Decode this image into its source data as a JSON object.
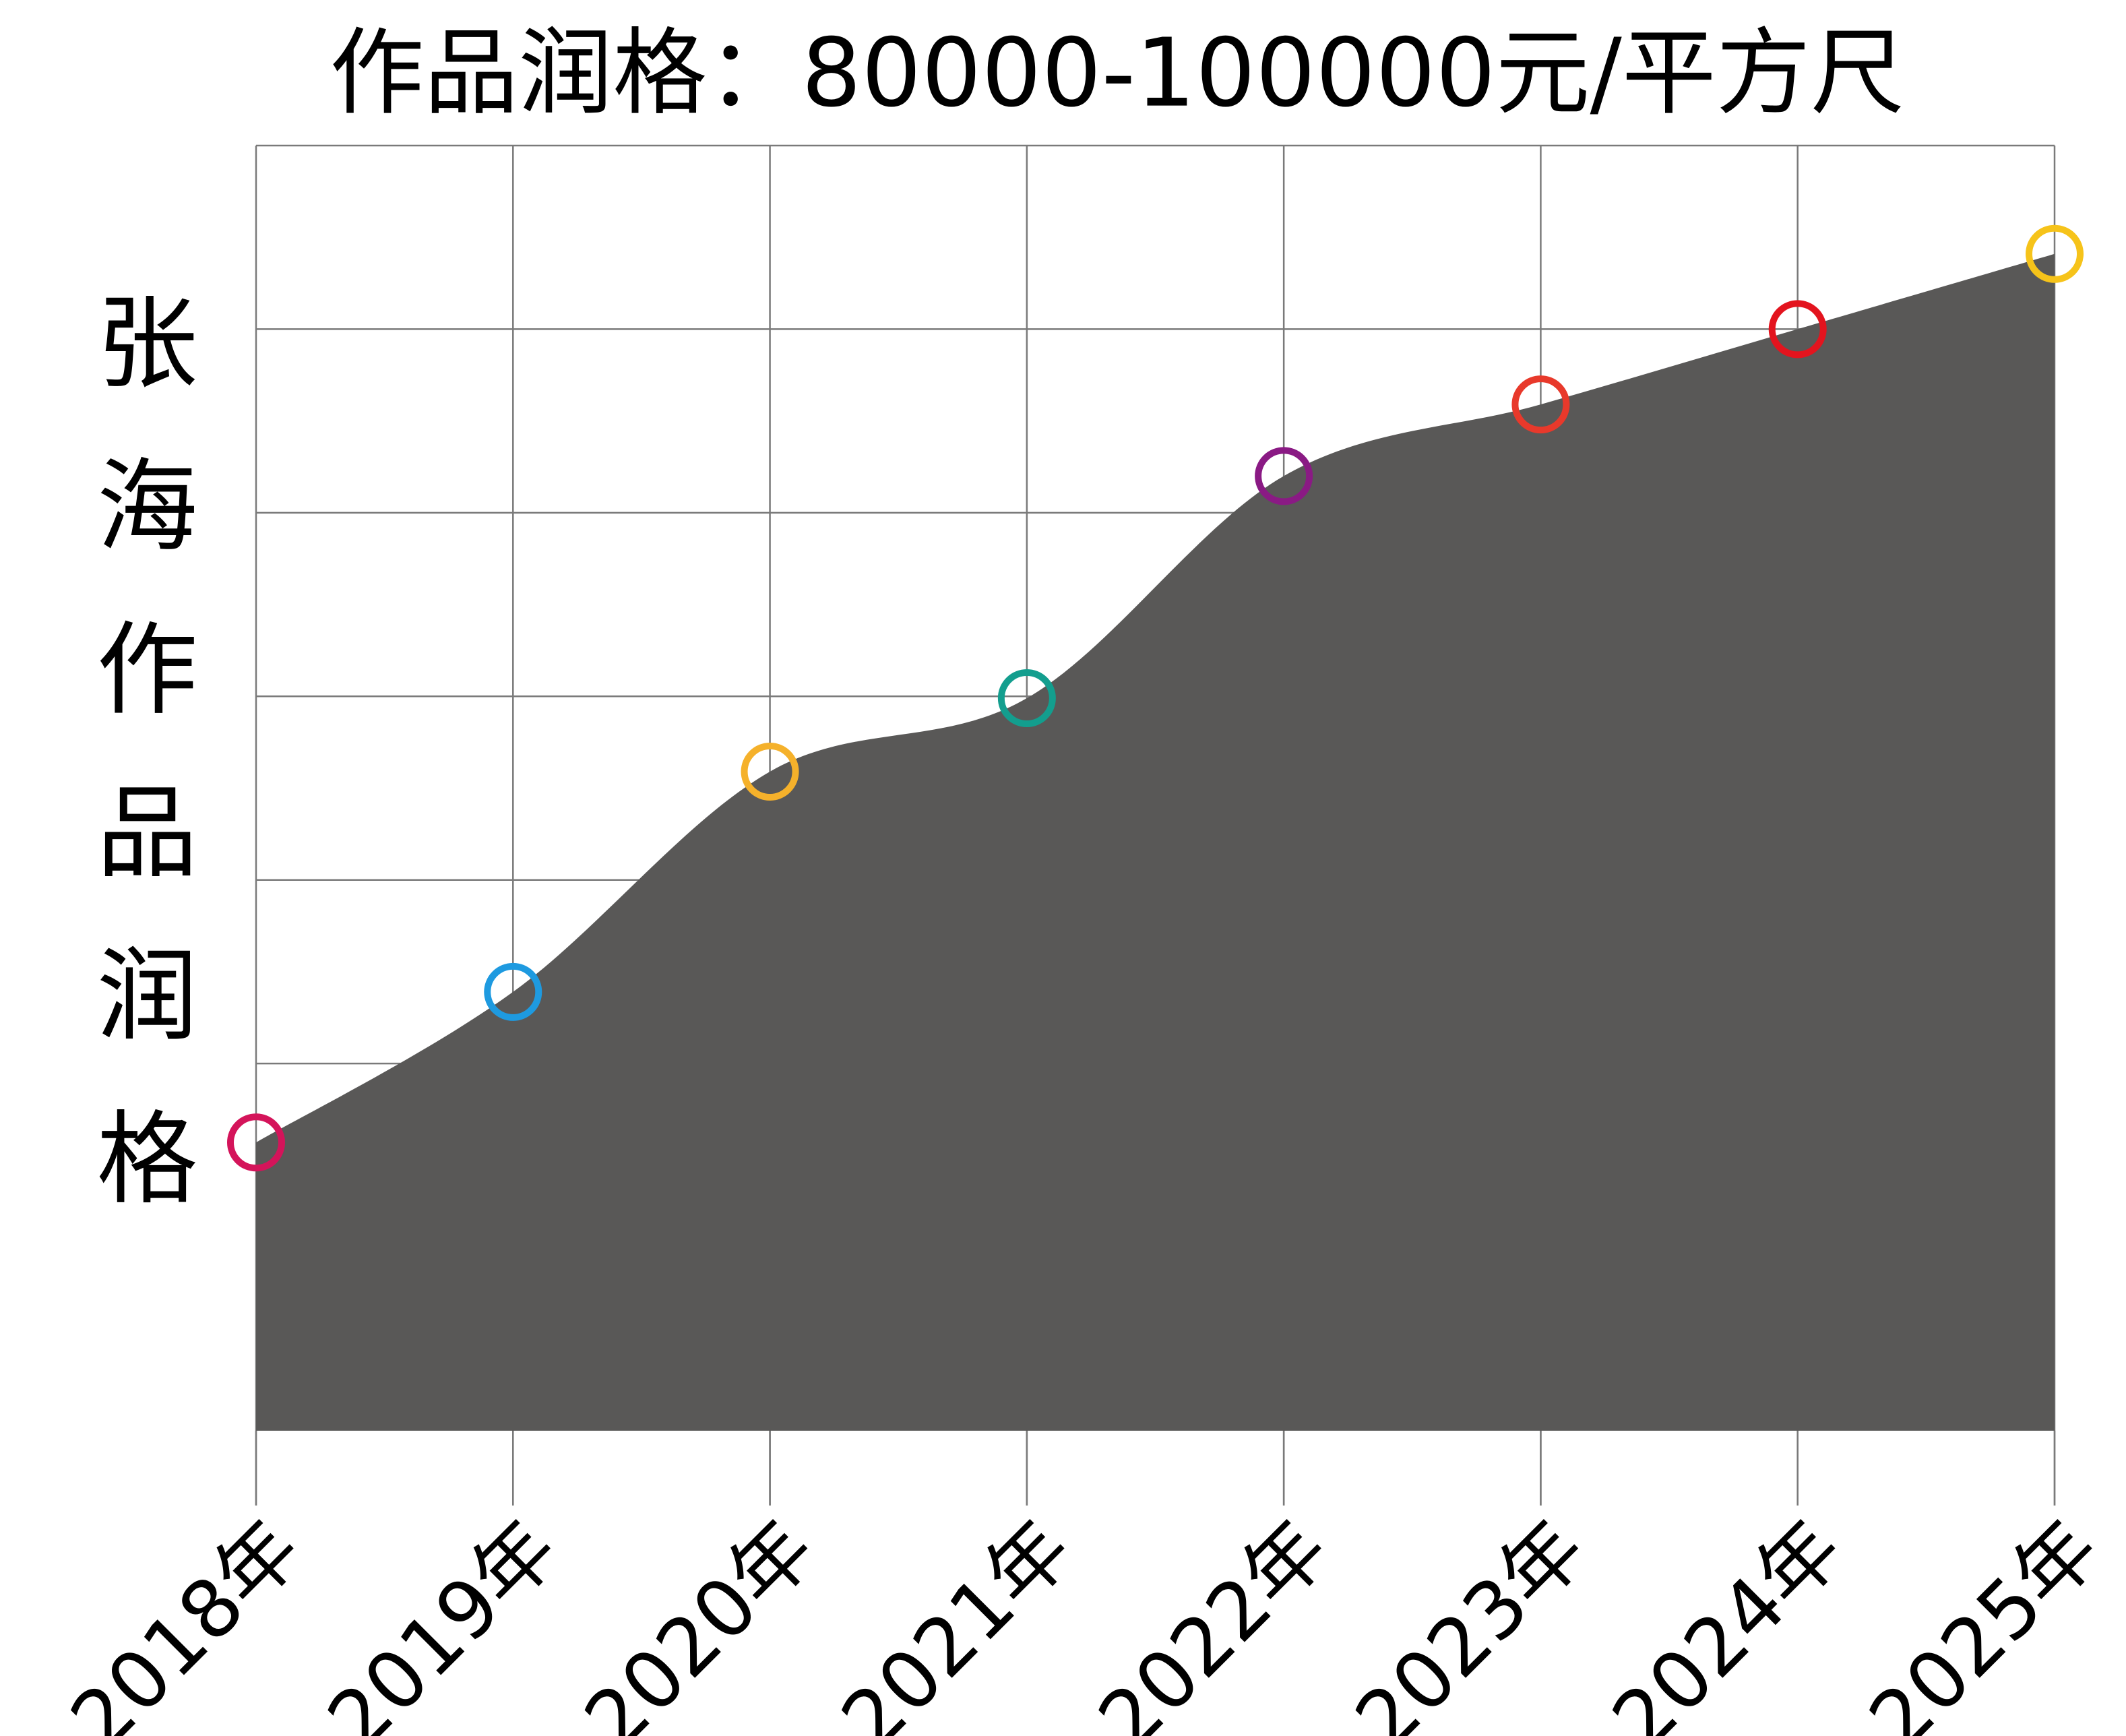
{
  "chart_data": {
    "type": "area",
    "title": "作品润格：80000-100000元/平方尺",
    "y_label": "张海作品润格",
    "categories": [
      "2018年",
      "2019年",
      "2020年",
      "2021年",
      "2022年",
      "2023年",
      "2024年",
      "2025年"
    ],
    "values": [
      1.57,
      2.39,
      3.59,
      3.99,
      5.2,
      5.59,
      6.0,
      6.41
    ],
    "color": "#595857",
    "marker_colors": [
      "#d4145a",
      "#1e9ae0",
      "#f5b12b",
      "#139e8e",
      "#8a1a84",
      "#e8392b",
      "#e3141e",
      "#f6c31a"
    ],
    "ylim": [
      0,
      7
    ],
    "gridlines": [
      2,
      3,
      4,
      5,
      6
    ],
    "grid": true
  }
}
